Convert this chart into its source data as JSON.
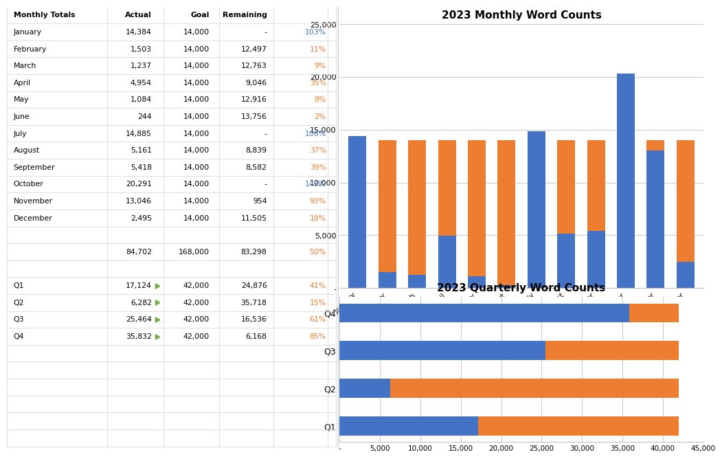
{
  "monthly_labels": [
    "January",
    "February",
    "March",
    "April",
    "May",
    "June",
    "July",
    "August",
    "September",
    "October",
    "November",
    "December"
  ],
  "monthly_actual": [
    14384,
    1503,
    1237,
    4954,
    1084,
    244,
    14885,
    5161,
    5418,
    20291,
    13046,
    2495
  ],
  "monthly_goal": [
    14000,
    14000,
    14000,
    14000,
    14000,
    14000,
    14000,
    14000,
    14000,
    14000,
    14000,
    14000
  ],
  "monthly_remaining": [
    0,
    12497,
    12763,
    9046,
    12916,
    13756,
    0,
    8839,
    8582,
    0,
    954,
    11505
  ],
  "quarterly_labels": [
    "Q1",
    "Q2",
    "Q3",
    "Q4"
  ],
  "quarterly_actual": [
    17124,
    6282,
    25464,
    35832
  ],
  "quarterly_remaining": [
    24876,
    35718,
    16536,
    6168
  ],
  "table_data": {
    "headers": [
      "Monthly Totals",
      "Actual",
      "Goal",
      "Remaining",
      ""
    ],
    "rows": [
      [
        "January",
        "14,384",
        "14,000",
        "-",
        "103%"
      ],
      [
        "February",
        "1,503",
        "14,000",
        "12,497",
        "11%"
      ],
      [
        "March",
        "1,237",
        "14,000",
        "12,763",
        "9%"
      ],
      [
        "April",
        "4,954",
        "14,000",
        "9,046",
        "35%"
      ],
      [
        "May",
        "1,084",
        "14,000",
        "12,916",
        "8%"
      ],
      [
        "June",
        "244",
        "14,000",
        "13,756",
        "2%"
      ],
      [
        "July",
        "14,885",
        "14,000",
        "-",
        "106%"
      ],
      [
        "August",
        "5,161",
        "14,000",
        "8,839",
        "37%"
      ],
      [
        "September",
        "5,418",
        "14,000",
        "8,582",
        "39%"
      ],
      [
        "October",
        "20,291",
        "14,000",
        "-",
        "145%"
      ],
      [
        "November",
        "13,046",
        "14,000",
        "954",
        "93%"
      ],
      [
        "December",
        "2,495",
        "14,000",
        "11,505",
        "18%"
      ]
    ],
    "summary": [
      "",
      "84,702",
      "168,000",
      "83,298",
      "50%"
    ],
    "quarterly_rows": [
      [
        "Q1",
        "17,124",
        "42,000",
        "24,876",
        "41%"
      ],
      [
        "Q2",
        "6,282",
        "42,000",
        "35,718",
        "15%"
      ],
      [
        "Q3",
        "25,464",
        "42,000",
        "16,536",
        "61%"
      ],
      [
        "Q4",
        "35,832",
        "42,000",
        "6,168",
        "85%"
      ]
    ]
  },
  "blue_color": "#4472C4",
  "orange_color": "#ED7D31",
  "green_color": "#70AD47",
  "blue_pct_color": "#4472C4",
  "orange_pct_color": "#ED7D31",
  "grid_color": "#BFBFBF",
  "bg_color": "#FFFFFF",
  "cell_border_color": "#D0D0D0",
  "monthly_chart_title": "2023 Monthly Word Counts",
  "quarterly_chart_title": "2023 Quarterly Word Counts",
  "monthly_ylim": [
    0,
    25000
  ],
  "monthly_yticks": [
    0,
    5000,
    10000,
    15000,
    20000,
    25000
  ],
  "quarterly_xlim": [
    0,
    45000
  ],
  "quarterly_xticks": [
    0,
    5000,
    10000,
    15000,
    20000,
    25000,
    30000,
    35000,
    40000,
    45000
  ]
}
